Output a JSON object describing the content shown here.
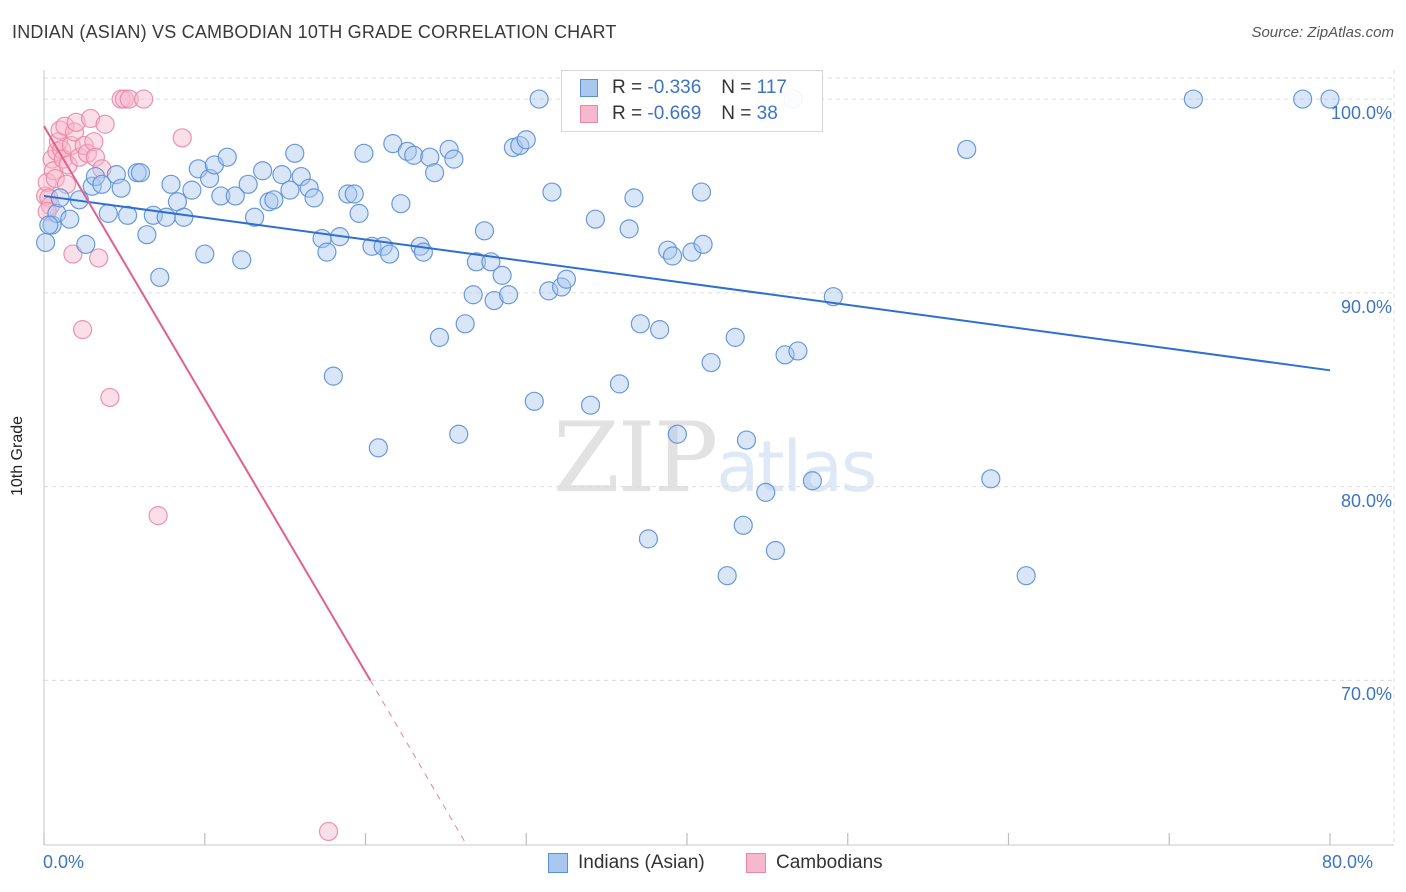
{
  "header": {
    "title": "INDIAN (ASIAN) VS CAMBODIAN 10TH GRADE CORRELATION CHART",
    "source": "Source: ZipAtlas.com"
  },
  "watermark": {
    "part1": "ZIP",
    "part2": "atlas"
  },
  "colors": {
    "blue_fill": "#a9c8f0",
    "blue_stroke": "#5b8fd6",
    "blue_line": "#2f6fd0",
    "pink_fill": "#f6b8cc",
    "pink_stroke": "#ec86a6",
    "pink_line": "#e0608e",
    "grid": "#dcdcdc",
    "tick_text": "#3d74c4"
  },
  "legend": {
    "rows": [
      {
        "r_label": "R = ",
        "r_value": "-0.336",
        "n_label": "N = ",
        "n_value": "117"
      },
      {
        "r_label": "R = ",
        "r_value": "-0.669",
        "n_label": "N = ",
        "n_value": "38"
      }
    ]
  },
  "bottom_legend": {
    "series1": "Indians (Asian)",
    "series2": "Cambodians"
  },
  "chart_data": {
    "type": "scatter",
    "title": "INDIAN (ASIAN) VS CAMBODIAN 10TH GRADE CORRELATION CHART",
    "xlabel": "",
    "ylabel": "10th Grade",
    "xlim": [
      0,
      80
    ],
    "ylim": [
      61.5,
      101.5
    ],
    "x_tick_labels": [
      "0.0%",
      "80.0%"
    ],
    "y_ticks": [
      70,
      80,
      90,
      100
    ],
    "y_tick_labels": [
      "70.0%",
      "80.0%",
      "90.0%",
      "100.0%"
    ],
    "legend_position": "top-center",
    "series": [
      {
        "name": "Indians (Asian)",
        "r": -0.336,
        "n": 117,
        "trend": {
          "x0": 0,
          "y0": 95.0,
          "x1": 80,
          "y1": 86.0
        },
        "points": [
          [
            0.1,
            92.6
          ],
          [
            0.5,
            93.5
          ],
          [
            0.8,
            94.1
          ],
          [
            1.0,
            94.9
          ],
          [
            1.6,
            93.8
          ],
          [
            2.2,
            94.8
          ],
          [
            2.6,
            92.5
          ],
          [
            3.0,
            95.5
          ],
          [
            3.2,
            96.0
          ],
          [
            3.6,
            95.6
          ],
          [
            4.0,
            94.1
          ],
          [
            4.5,
            96.1
          ],
          [
            4.8,
            95.4
          ],
          [
            5.2,
            94.0
          ],
          [
            5.8,
            96.2
          ],
          [
            6.0,
            96.2
          ],
          [
            6.4,
            93.0
          ],
          [
            6.8,
            94.0
          ],
          [
            7.2,
            90.8
          ],
          [
            7.6,
            93.9
          ],
          [
            7.9,
            95.6
          ],
          [
            8.3,
            94.7
          ],
          [
            8.7,
            93.9
          ],
          [
            9.2,
            95.3
          ],
          [
            9.6,
            96.4
          ],
          [
            10.0,
            92.0
          ],
          [
            10.3,
            95.9
          ],
          [
            10.6,
            96.6
          ],
          [
            11.0,
            95.0
          ],
          [
            11.4,
            97.0
          ],
          [
            11.9,
            95.0
          ],
          [
            12.3,
            91.7
          ],
          [
            12.7,
            95.6
          ],
          [
            13.1,
            93.9
          ],
          [
            13.6,
            96.3
          ],
          [
            14.0,
            94.7
          ],
          [
            14.3,
            94.8
          ],
          [
            14.8,
            96.1
          ],
          [
            15.3,
            95.3
          ],
          [
            15.6,
            97.2
          ],
          [
            16.0,
            96.0
          ],
          [
            16.5,
            95.4
          ],
          [
            16.8,
            94.9
          ],
          [
            17.3,
            92.8
          ],
          [
            17.6,
            92.1
          ],
          [
            18.0,
            85.7
          ],
          [
            18.4,
            92.9
          ],
          [
            18.9,
            95.1
          ],
          [
            19.3,
            95.1
          ],
          [
            19.6,
            94.1
          ],
          [
            19.9,
            97.2
          ],
          [
            20.4,
            92.4
          ],
          [
            20.8,
            82.0
          ],
          [
            21.1,
            92.4
          ],
          [
            21.5,
            92.0
          ],
          [
            21.7,
            97.7
          ],
          [
            22.2,
            94.6
          ],
          [
            22.6,
            97.3
          ],
          [
            23.0,
            97.1
          ],
          [
            23.4,
            92.4
          ],
          [
            23.6,
            92.1
          ],
          [
            24.0,
            97.0
          ],
          [
            24.3,
            96.2
          ],
          [
            24.6,
            87.7
          ],
          [
            25.2,
            97.4
          ],
          [
            25.5,
            96.9
          ],
          [
            25.8,
            82.7
          ],
          [
            26.2,
            88.4
          ],
          [
            26.7,
            89.9
          ],
          [
            26.9,
            91.6
          ],
          [
            27.4,
            93.2
          ],
          [
            27.8,
            91.6
          ],
          [
            28.0,
            89.6
          ],
          [
            28.5,
            90.9
          ],
          [
            28.9,
            89.9
          ],
          [
            29.2,
            97.5
          ],
          [
            29.6,
            97.6
          ],
          [
            30.0,
            97.9
          ],
          [
            30.5,
            84.4
          ],
          [
            30.8,
            100.0
          ],
          [
            31.4,
            90.1
          ],
          [
            31.6,
            95.2
          ],
          [
            32.2,
            90.3
          ],
          [
            32.5,
            90.7
          ],
          [
            34.0,
            84.2
          ],
          [
            34.3,
            93.8
          ],
          [
            35.8,
            85.3
          ],
          [
            36.4,
            93.3
          ],
          [
            36.7,
            94.9
          ],
          [
            37.1,
            88.4
          ],
          [
            37.6,
            77.3
          ],
          [
            38.3,
            88.1
          ],
          [
            38.8,
            92.2
          ],
          [
            39.1,
            91.9
          ],
          [
            39.4,
            82.7
          ],
          [
            40.3,
            92.1
          ],
          [
            40.9,
            95.2
          ],
          [
            41.0,
            92.5
          ],
          [
            41.5,
            86.4
          ],
          [
            42.5,
            75.4
          ],
          [
            43.0,
            87.7
          ],
          [
            43.5,
            78.0
          ],
          [
            43.7,
            82.4
          ],
          [
            44.9,
            79.7
          ],
          [
            45.5,
            76.7
          ],
          [
            46.1,
            86.8
          ],
          [
            46.6,
            100.0
          ],
          [
            46.9,
            87.0
          ],
          [
            47.8,
            80.3
          ],
          [
            49.1,
            89.8
          ],
          [
            57.4,
            97.4
          ],
          [
            58.9,
            80.4
          ],
          [
            61.1,
            75.4
          ],
          [
            71.5,
            100.0
          ],
          [
            78.3,
            100.0
          ],
          [
            80.0,
            100.0
          ],
          [
            0.3,
            93.5
          ]
        ]
      },
      {
        "name": "Cambodians",
        "r": -0.669,
        "n": 38,
        "trend": {
          "x0": 0,
          "y0": 98.6,
          "x1": 20.3,
          "y1": 70.0,
          "dashed_to_x": 27.0,
          "dashed_to_y": 60.5
        },
        "points": [
          [
            0.1,
            95.0
          ],
          [
            0.2,
            95.7
          ],
          [
            0.3,
            94.9
          ],
          [
            0.4,
            94.5
          ],
          [
            0.5,
            96.9
          ],
          [
            0.6,
            96.3
          ],
          [
            0.7,
            95.9
          ],
          [
            0.8,
            97.3
          ],
          [
            0.9,
            97.8
          ],
          [
            1.0,
            98.4
          ],
          [
            1.1,
            97.4
          ],
          [
            1.2,
            96.9
          ],
          [
            1.3,
            98.6
          ],
          [
            1.4,
            95.6
          ],
          [
            1.5,
            96.6
          ],
          [
            1.7,
            97.6
          ],
          [
            1.8,
            92.0
          ],
          [
            1.9,
            98.3
          ],
          [
            2.0,
            98.8
          ],
          [
            2.2,
            97.0
          ],
          [
            2.4,
            88.1
          ],
          [
            2.5,
            97.6
          ],
          [
            2.7,
            97.2
          ],
          [
            2.9,
            99.0
          ],
          [
            3.1,
            97.8
          ],
          [
            3.2,
            97.0
          ],
          [
            3.4,
            91.8
          ],
          [
            3.6,
            96.4
          ],
          [
            3.8,
            98.7
          ],
          [
            4.1,
            84.6
          ],
          [
            4.8,
            100.0
          ],
          [
            5.0,
            100.0
          ],
          [
            5.3,
            100.0
          ],
          [
            6.2,
            100.0
          ],
          [
            7.1,
            78.5
          ],
          [
            8.6,
            98.0
          ],
          [
            17.7,
            62.2
          ],
          [
            0.2,
            94.2
          ]
        ]
      }
    ]
  }
}
